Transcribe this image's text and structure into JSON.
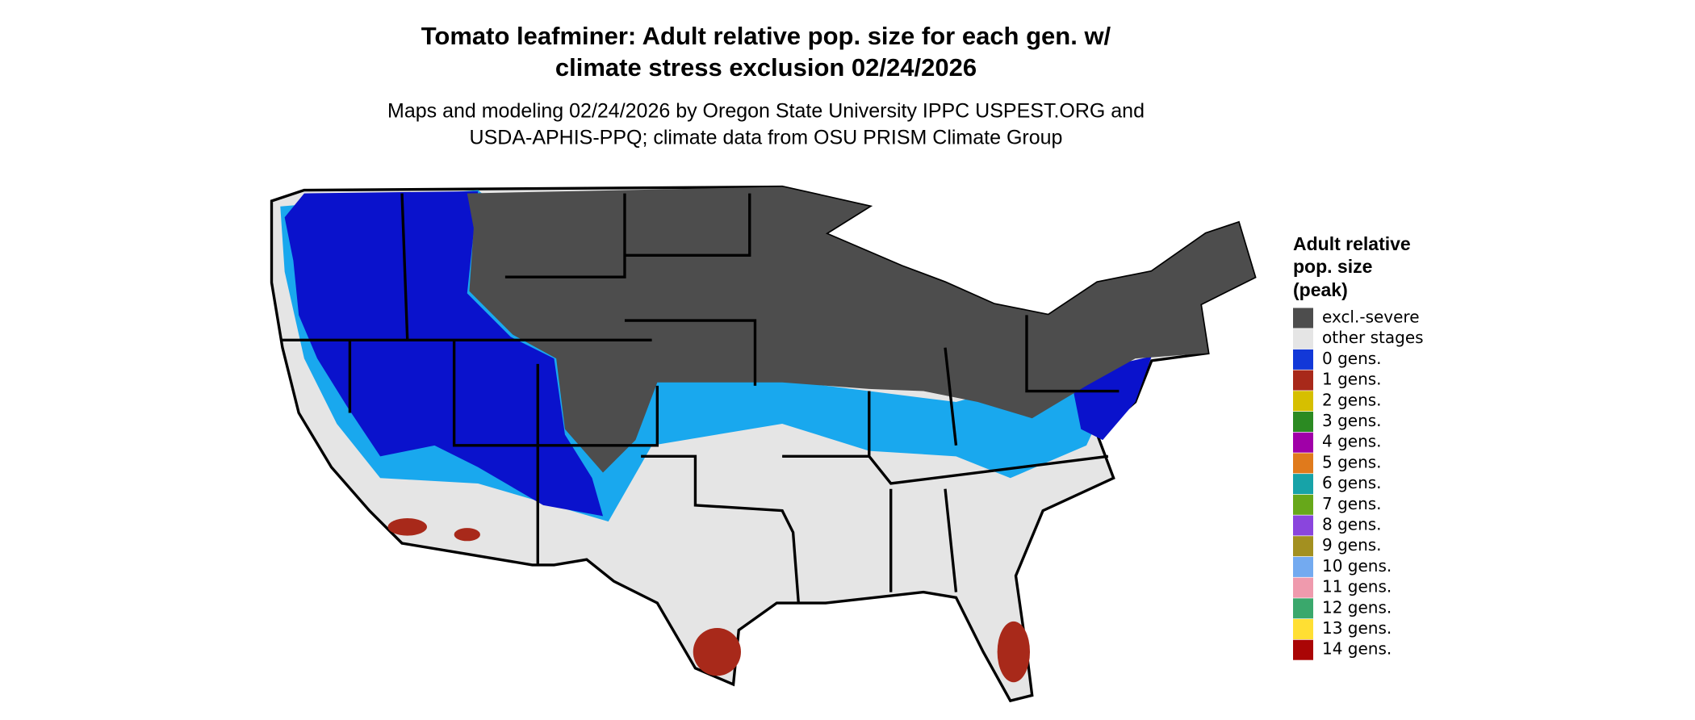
{
  "title": "Tomato leafminer: Adult relative pop. size for each gen. w/ climate stress exclusion 02/24/2026",
  "title_lines": [
    "Tomato leafminer: Adult relative pop. size for each gen. w/",
    "climate stress exclusion 02/24/2026"
  ],
  "subtitle_lines": [
    "Maps and modeling 02/24/2026 by Oregon State University IPPC USPEST.ORG and",
    "USDA-APHIS-PPQ; climate data from OSU PRISM Climate Group"
  ],
  "legend": {
    "title_lines": [
      "Adult relative",
      "pop. size",
      "(peak)"
    ],
    "items": [
      {
        "label": "excl.-severe",
        "color": "#4d4d4d"
      },
      {
        "label": "other stages",
        "color": "#e5e5e5"
      },
      {
        "label": "0 gens.",
        "color": "#1238d8"
      },
      {
        "label": "1 gens.",
        "color": "#a8291a"
      },
      {
        "label": "2 gens.",
        "color": "#d6bf00"
      },
      {
        "label": "3 gens.",
        "color": "#2b8a22"
      },
      {
        "label": "4 gens.",
        "color": "#a000a8"
      },
      {
        "label": "5 gens.",
        "color": "#e07a1c"
      },
      {
        "label": "6 gens.",
        "color": "#17a3a8"
      },
      {
        "label": "7 gens.",
        "color": "#67a81a"
      },
      {
        "label": "8 gens.",
        "color": "#8a45dd"
      },
      {
        "label": "9 gens.",
        "color": "#a39020"
      },
      {
        "label": "10 gens.",
        "color": "#73aaf0"
      },
      {
        "label": "11 gens.",
        "color": "#ef9aad"
      },
      {
        "label": "12 gens.",
        "color": "#3aa86c"
      },
      {
        "label": "13 gens.",
        "color": "#ffdf33"
      },
      {
        "label": "14 gens.",
        "color": "#aa0505"
      }
    ]
  }
}
